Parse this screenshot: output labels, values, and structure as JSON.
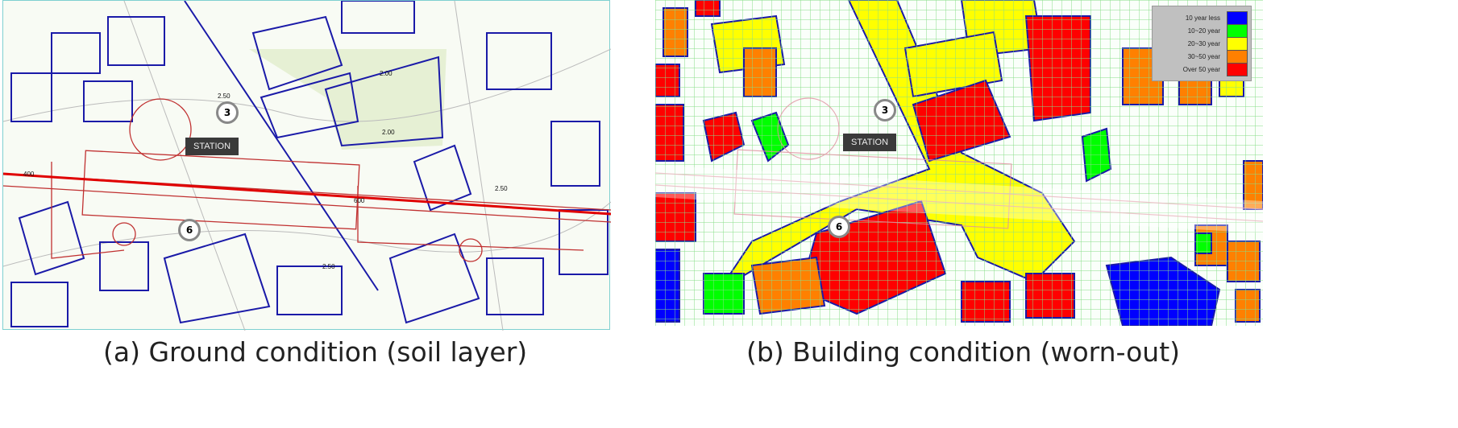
{
  "panel_a": {
    "caption": "(a) Ground condition (soil layer)",
    "station_label": "STATION",
    "markers": [
      "3",
      "6"
    ],
    "contour_labels": [
      "2.50",
      "2.00",
      "2.00",
      "2.50",
      "2.50"
    ],
    "chainage_labels": [
      "400",
      "600"
    ]
  },
  "panel_b": {
    "caption": "(b) Building condition (worn-out)",
    "station_label": "STATION",
    "markers": [
      "3",
      "6"
    ],
    "legend": [
      {
        "label": "10 year less",
        "color": "#0000ff"
      },
      {
        "label": "10~20 year",
        "color": "#00ff00"
      },
      {
        "label": "20~30 year",
        "color": "#ffff00"
      },
      {
        "label": "30~50 year",
        "color": "#ff8000"
      },
      {
        "label": "Over 50 year",
        "color": "#ff0000"
      }
    ]
  },
  "colors": {
    "building_outline": "#1a1aa8",
    "tunnel_alignment": "#e00000",
    "grid": "#88dd88"
  }
}
